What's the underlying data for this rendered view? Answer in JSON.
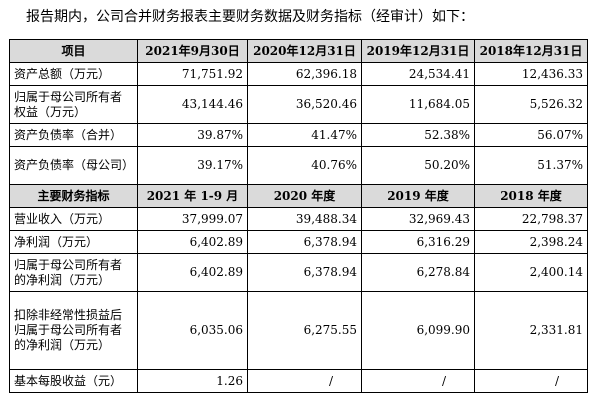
{
  "intro": "报告期内，公司合并财务报表主要财务数据及财务指标（经审计）如下：",
  "balance": {
    "header": [
      "项目",
      "2021年9月30日",
      "2020年12月31日",
      "2019年12月31日",
      "2018年12月31日"
    ],
    "rows": [
      {
        "label": "资产总额（万元）",
        "values": [
          "71,751.92",
          "62,396.18",
          "24,534.41",
          "12,436.33"
        ]
      },
      {
        "label": "归属于母公司所有者权益（万元）",
        "values": [
          "43,144.46",
          "36,520.46",
          "11,684.05",
          "5,526.32"
        ]
      },
      {
        "label": "资产负债率（合并）",
        "values": [
          "39.87%",
          "41.47%",
          "52.38%",
          "56.07%"
        ]
      },
      {
        "label": "资产负债率（母公司）",
        "values": [
          "39.17%",
          "40.76%",
          "50.20%",
          "51.37%"
        ]
      }
    ]
  },
  "income": {
    "header": [
      "主要财务指标",
      "2021 年 1-9 月",
      "2020 年度",
      "2019 年度",
      "2018 年度"
    ],
    "rows": [
      {
        "label": "营业收入（万元）",
        "values": [
          "37,999.07",
          "39,488.34",
          "32,969.43",
          "22,798.37"
        ]
      },
      {
        "label": "净利润（万元）",
        "values": [
          "6,402.89",
          "6,378.94",
          "6,316.29",
          "2,398.24"
        ]
      },
      {
        "label": "归属于母公司所有者的净利润（万元）",
        "values": [
          "6,402.89",
          "6,378.94",
          "6,278.84",
          "2,400.14"
        ]
      },
      {
        "label": "扣除非经常性损益后归属于母公司所有者的净利润（万元）",
        "values": [
          "6,035.06",
          "6,275.55",
          "6,099.90",
          "2,331.81"
        ]
      },
      {
        "label": "基本每股收益（元）",
        "values": [
          "1.26",
          "/",
          "/",
          "/"
        ]
      }
    ]
  }
}
